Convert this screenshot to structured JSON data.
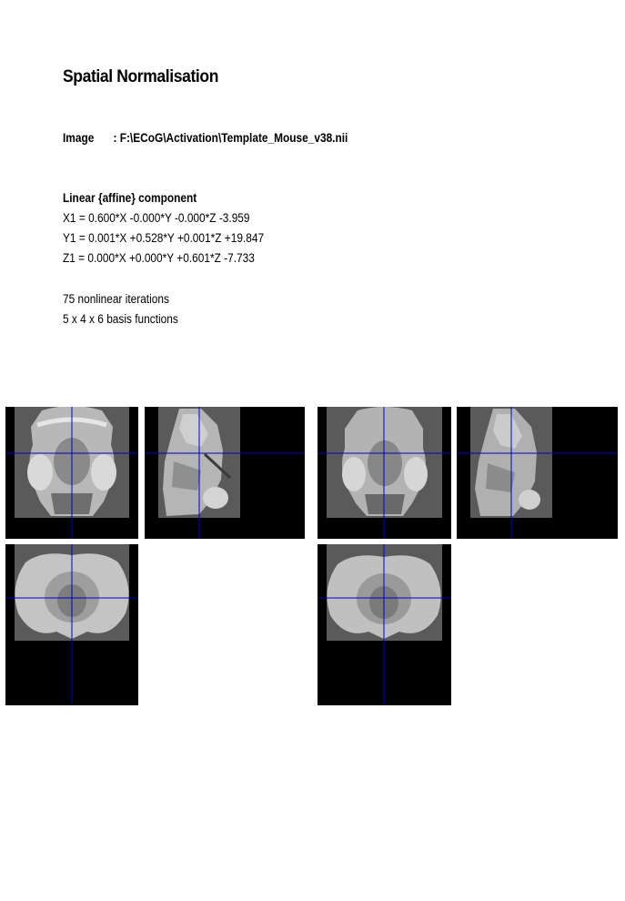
{
  "title": "Spatial Normalisation",
  "image": {
    "label": "Image",
    "value": ": F:\\ECoG\\Activation\\Template_Mouse_v38.nii"
  },
  "affine": {
    "heading": "Linear {affine} component",
    "x1": "X1 = 0.600*X -0.000*Y -0.000*Z -3.959",
    "y1": "Y1 = 0.001*X +0.528*Y +0.001*Z +19.847",
    "z1": "Z1 = 0.000*X +0.000*Y +0.601*Z -7.733"
  },
  "nonlinear": {
    "iterations": "75 nonlinear iterations",
    "basis": "5 x 4 x 6 basis functions"
  },
  "views": {
    "crosshair_color": "#0000cc",
    "panels": [
      {
        "view": "coronal",
        "image": "template"
      },
      {
        "view": "sagittal",
        "image": "template"
      },
      {
        "view": "axial",
        "image": "template"
      },
      {
        "view": "coronal",
        "image": "normalised"
      },
      {
        "view": "sagittal",
        "image": "normalised"
      },
      {
        "view": "axial",
        "image": "normalised"
      }
    ]
  }
}
